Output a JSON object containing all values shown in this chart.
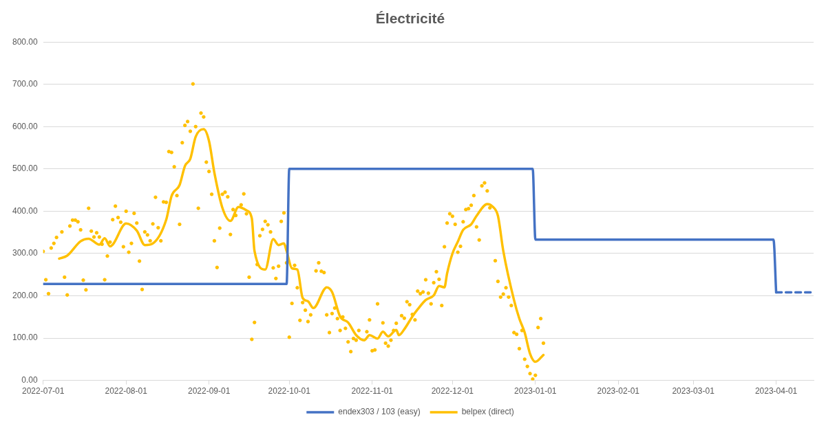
{
  "chart_data": {
    "type": "line",
    "title": "Électricité",
    "xlim": [
      "2022-07-01",
      "2023-04-15"
    ],
    "xticks": [
      "2022-07-01",
      "2022-08-01",
      "2022-09-01",
      "2022-10-01",
      "2022-11-01",
      "2022-12-01",
      "2023-01-01",
      "2023-02-01",
      "2023-03-01",
      "2023-04-01"
    ],
    "ylim": [
      0,
      800
    ],
    "yticks": [
      {
        "value": 0,
        "label": "0.00"
      },
      {
        "value": 100,
        "label": "100.00"
      },
      {
        "value": 200,
        "label": "200.00"
      },
      {
        "value": 300,
        "label": "300.00"
      },
      {
        "value": 400,
        "label": "400.00"
      },
      {
        "value": 500,
        "label": "500.00"
      },
      {
        "value": 600,
        "label": "600.00"
      },
      {
        "value": 700,
        "label": "700.00"
      },
      {
        "value": 800,
        "label": "800.00"
      }
    ],
    "grid": "y",
    "legend": "bottom",
    "series": [
      {
        "name": "endex303 / 103 (easy)",
        "type": "line",
        "color": "#4472c4",
        "marker": "none",
        "line_style": "solid",
        "x": [
          "2022-07-01",
          "2022-09-30",
          "2022-10-01",
          "2022-12-31",
          "2023-01-01",
          "2023-03-31",
          "2023-04-01"
        ],
        "values": [
          228,
          228,
          500,
          500,
          333,
          333,
          208
        ]
      },
      {
        "type": "line",
        "color": "#4472c4",
        "marker": "none",
        "line_style": "dashed",
        "x": [
          "2023-04-01",
          "2023-04-15"
        ],
        "values": [
          208,
          208
        ]
      },
      {
        "type": "scatter",
        "color": "#ffc000",
        "marker": "circle",
        "x": [
          "2022-07-01",
          "2022-07-02",
          "2022-07-03",
          "2022-07-04",
          "2022-07-05",
          "2022-07-06",
          "2022-07-08",
          "2022-07-09",
          "2022-07-10",
          "2022-07-11",
          "2022-07-12",
          "2022-07-13",
          "2022-07-14",
          "2022-07-15",
          "2022-07-16",
          "2022-07-17",
          "2022-07-18",
          "2022-07-19",
          "2022-07-20",
          "2022-07-21",
          "2022-07-22",
          "2022-07-23",
          "2022-07-24",
          "2022-07-25",
          "2022-07-26",
          "2022-07-27",
          "2022-07-28",
          "2022-07-29",
          "2022-07-30",
          "2022-07-31",
          "2022-08-01",
          "2022-08-02",
          "2022-08-03",
          "2022-08-04",
          "2022-08-05",
          "2022-08-06",
          "2022-08-07",
          "2022-08-08",
          "2022-08-09",
          "2022-08-10",
          "2022-08-11",
          "2022-08-12",
          "2022-08-13",
          "2022-08-14",
          "2022-08-15",
          "2022-08-16",
          "2022-08-17",
          "2022-08-18",
          "2022-08-19",
          "2022-08-20",
          "2022-08-21",
          "2022-08-22",
          "2022-08-23",
          "2022-08-24",
          "2022-08-25",
          "2022-08-26",
          "2022-08-27",
          "2022-08-28",
          "2022-08-29",
          "2022-08-30",
          "2022-08-31",
          "2022-09-01",
          "2022-09-02",
          "2022-09-03",
          "2022-09-04",
          "2022-09-05",
          "2022-09-06",
          "2022-09-07",
          "2022-09-08",
          "2022-09-09",
          "2022-09-10",
          "2022-09-11",
          "2022-09-13",
          "2022-09-14",
          "2022-09-15",
          "2022-09-16",
          "2022-09-17",
          "2022-09-18",
          "2022-09-19",
          "2022-09-20",
          "2022-09-21",
          "2022-09-22",
          "2022-09-23",
          "2022-09-24",
          "2022-09-25",
          "2022-09-26",
          "2022-09-27",
          "2022-09-28",
          "2022-09-29",
          "2022-09-30",
          "2022-10-01",
          "2022-10-02",
          "2022-10-03",
          "2022-10-04",
          "2022-10-05",
          "2022-10-06",
          "2022-10-07",
          "2022-10-08",
          "2022-10-09",
          "2022-10-11",
          "2022-10-12",
          "2022-10-13",
          "2022-10-14",
          "2022-10-15",
          "2022-10-16",
          "2022-10-17",
          "2022-10-18",
          "2022-10-19",
          "2022-10-20",
          "2022-10-21",
          "2022-10-22",
          "2022-10-23",
          "2022-10-24",
          "2022-10-25",
          "2022-10-26",
          "2022-10-27",
          "2022-10-30",
          "2022-10-31",
          "2022-11-01",
          "2022-11-02",
          "2022-11-03",
          "2022-11-05",
          "2022-11-06",
          "2022-11-07",
          "2022-11-08",
          "2022-11-09",
          "2022-11-10",
          "2022-11-12",
          "2022-11-13",
          "2022-11-14",
          "2022-11-15",
          "2022-11-16",
          "2022-11-17",
          "2022-11-18",
          "2022-11-19",
          "2022-11-20",
          "2022-11-21",
          "2022-11-22",
          "2022-11-23",
          "2022-11-24",
          "2022-11-25",
          "2022-11-26",
          "2022-11-27",
          "2022-11-28",
          "2022-11-29",
          "2022-11-30",
          "2022-12-01",
          "2022-12-02",
          "2022-12-03",
          "2022-12-04",
          "2022-12-05",
          "2022-12-06",
          "2022-12-07",
          "2022-12-08",
          "2022-12-09",
          "2022-12-10",
          "2022-12-11",
          "2022-12-12",
          "2022-12-13",
          "2022-12-14",
          "2022-12-15",
          "2022-12-17",
          "2022-12-18",
          "2022-12-19",
          "2022-12-20",
          "2022-12-21",
          "2022-12-22",
          "2022-12-23",
          "2022-12-24",
          "2022-12-25",
          "2022-12-26",
          "2022-12-27",
          "2022-12-28",
          "2022-12-29",
          "2022-12-30",
          "2022-12-31",
          "2023-01-01",
          "2023-01-02",
          "2023-01-03",
          "2023-01-04"
        ],
        "values": [
          305,
          238,
          205,
          313,
          324,
          338,
          351,
          244,
          202,
          365,
          379,
          379,
          375,
          356,
          237,
          214,
          407,
          353,
          339,
          349,
          339,
          322,
          238,
          294,
          327,
          380,
          412,
          385,
          374,
          316,
          400,
          303,
          324,
          395,
          372,
          282,
          215,
          351,
          344,
          330,
          370,
          433,
          361,
          330,
          422,
          421,
          541,
          539,
          505,
          437,
          369,
          562,
          603,
          612,
          589,
          701,
          600,
          407,
          632,
          623,
          516,
          494,
          440,
          330,
          267,
          360,
          440,
          445,
          434,
          345,
          404,
          390,
          415,
          441,
          394,
          244,
          97,
          137,
          274,
          342,
          357,
          376,
          368,
          351,
          266,
          241,
          270,
          376,
          396,
          278,
          102,
          182,
          272,
          219,
          142,
          184,
          166,
          139,
          155,
          259,
          278,
          258,
          255,
          155,
          113,
          158,
          171,
          146,
          118,
          150,
          123,
          91,
          68,
          99,
          95,
          118,
          115,
          143,
          70,
          72,
          181,
          136,
          88,
          81,
          95,
          118,
          135,
          153,
          147,
          186,
          179,
          156,
          143,
          211,
          205,
          209,
          238,
          206,
          181,
          231,
          257,
          239,
          177,
          316,
          372,
          394,
          388,
          369,
          303,
          317,
          375,
          404,
          406,
          414,
          437,
          363,
          332,
          460,
          467,
          448,
          408,
          283,
          234,
          197,
          204,
          219,
          197,
          177,
          113,
          109,
          75,
          118,
          50,
          33,
          16,
          3,
          12,
          125,
          146,
          88
        ]
      },
      {
        "name": "belpex (direct)",
        "type": "line",
        "color": "#ffc000",
        "marker": "none",
        "line_style": "solid",
        "x": [
          "2022-07-07",
          "2022-07-10",
          "2022-07-15",
          "2022-07-18",
          "2022-07-22",
          "2022-07-24",
          "2022-07-26",
          "2022-07-27",
          "2022-08-01",
          "2022-08-05",
          "2022-08-08",
          "2022-08-11",
          "2022-08-16",
          "2022-08-18",
          "2022-08-21",
          "2022-08-23",
          "2022-08-25",
          "2022-08-27",
          "2022-08-30",
          "2022-09-01",
          "2022-09-03",
          "2022-09-06",
          "2022-09-09",
          "2022-09-12",
          "2022-09-15",
          "2022-09-17",
          "2022-09-18",
          "2022-09-22",
          "2022-09-25",
          "2022-09-27",
          "2022-09-29",
          "2022-09-30",
          "2022-10-02",
          "2022-10-04",
          "2022-10-06",
          "2022-10-08",
          "2022-10-10",
          "2022-10-15",
          "2022-10-17",
          "2022-10-20",
          "2022-10-23",
          "2022-10-26",
          "2022-10-29",
          "2022-10-31",
          "2022-11-03",
          "2022-11-05",
          "2022-11-07",
          "2022-11-10",
          "2022-11-11",
          "2022-11-13",
          "2022-11-16",
          "2022-11-18",
          "2022-11-21",
          "2022-11-24",
          "2022-11-26",
          "2022-11-28",
          "2022-11-29",
          "2022-12-01",
          "2022-12-03",
          "2022-12-05",
          "2022-12-08",
          "2022-12-10",
          "2022-12-14",
          "2022-12-16",
          "2022-12-18",
          "2022-12-20",
          "2022-12-24",
          "2022-12-26",
          "2022-12-28",
          "2022-12-30",
          "2023-01-01",
          "2023-01-04"
        ],
        "values": [
          288,
          295,
          329,
          335,
          321,
          336,
          317,
          321,
          371,
          354,
          320,
          324,
          380,
          436,
          462,
          507,
          524,
          576,
          594,
          566,
          491,
          408,
          377,
          410,
          402,
          383,
          306,
          262,
          334,
          320,
          324,
          306,
          265,
          262,
          195,
          187,
          171,
          220,
          209,
          151,
          137,
          107,
          95,
          107,
          99,
          115,
          104,
          119,
          107,
          121,
          151,
          168,
          190,
          201,
          223,
          220,
          253,
          300,
          328,
          356,
          369,
          389,
          417,
          411,
          389,
          306,
          190,
          146,
          113,
          63,
          44,
          60
        ]
      }
    ]
  }
}
